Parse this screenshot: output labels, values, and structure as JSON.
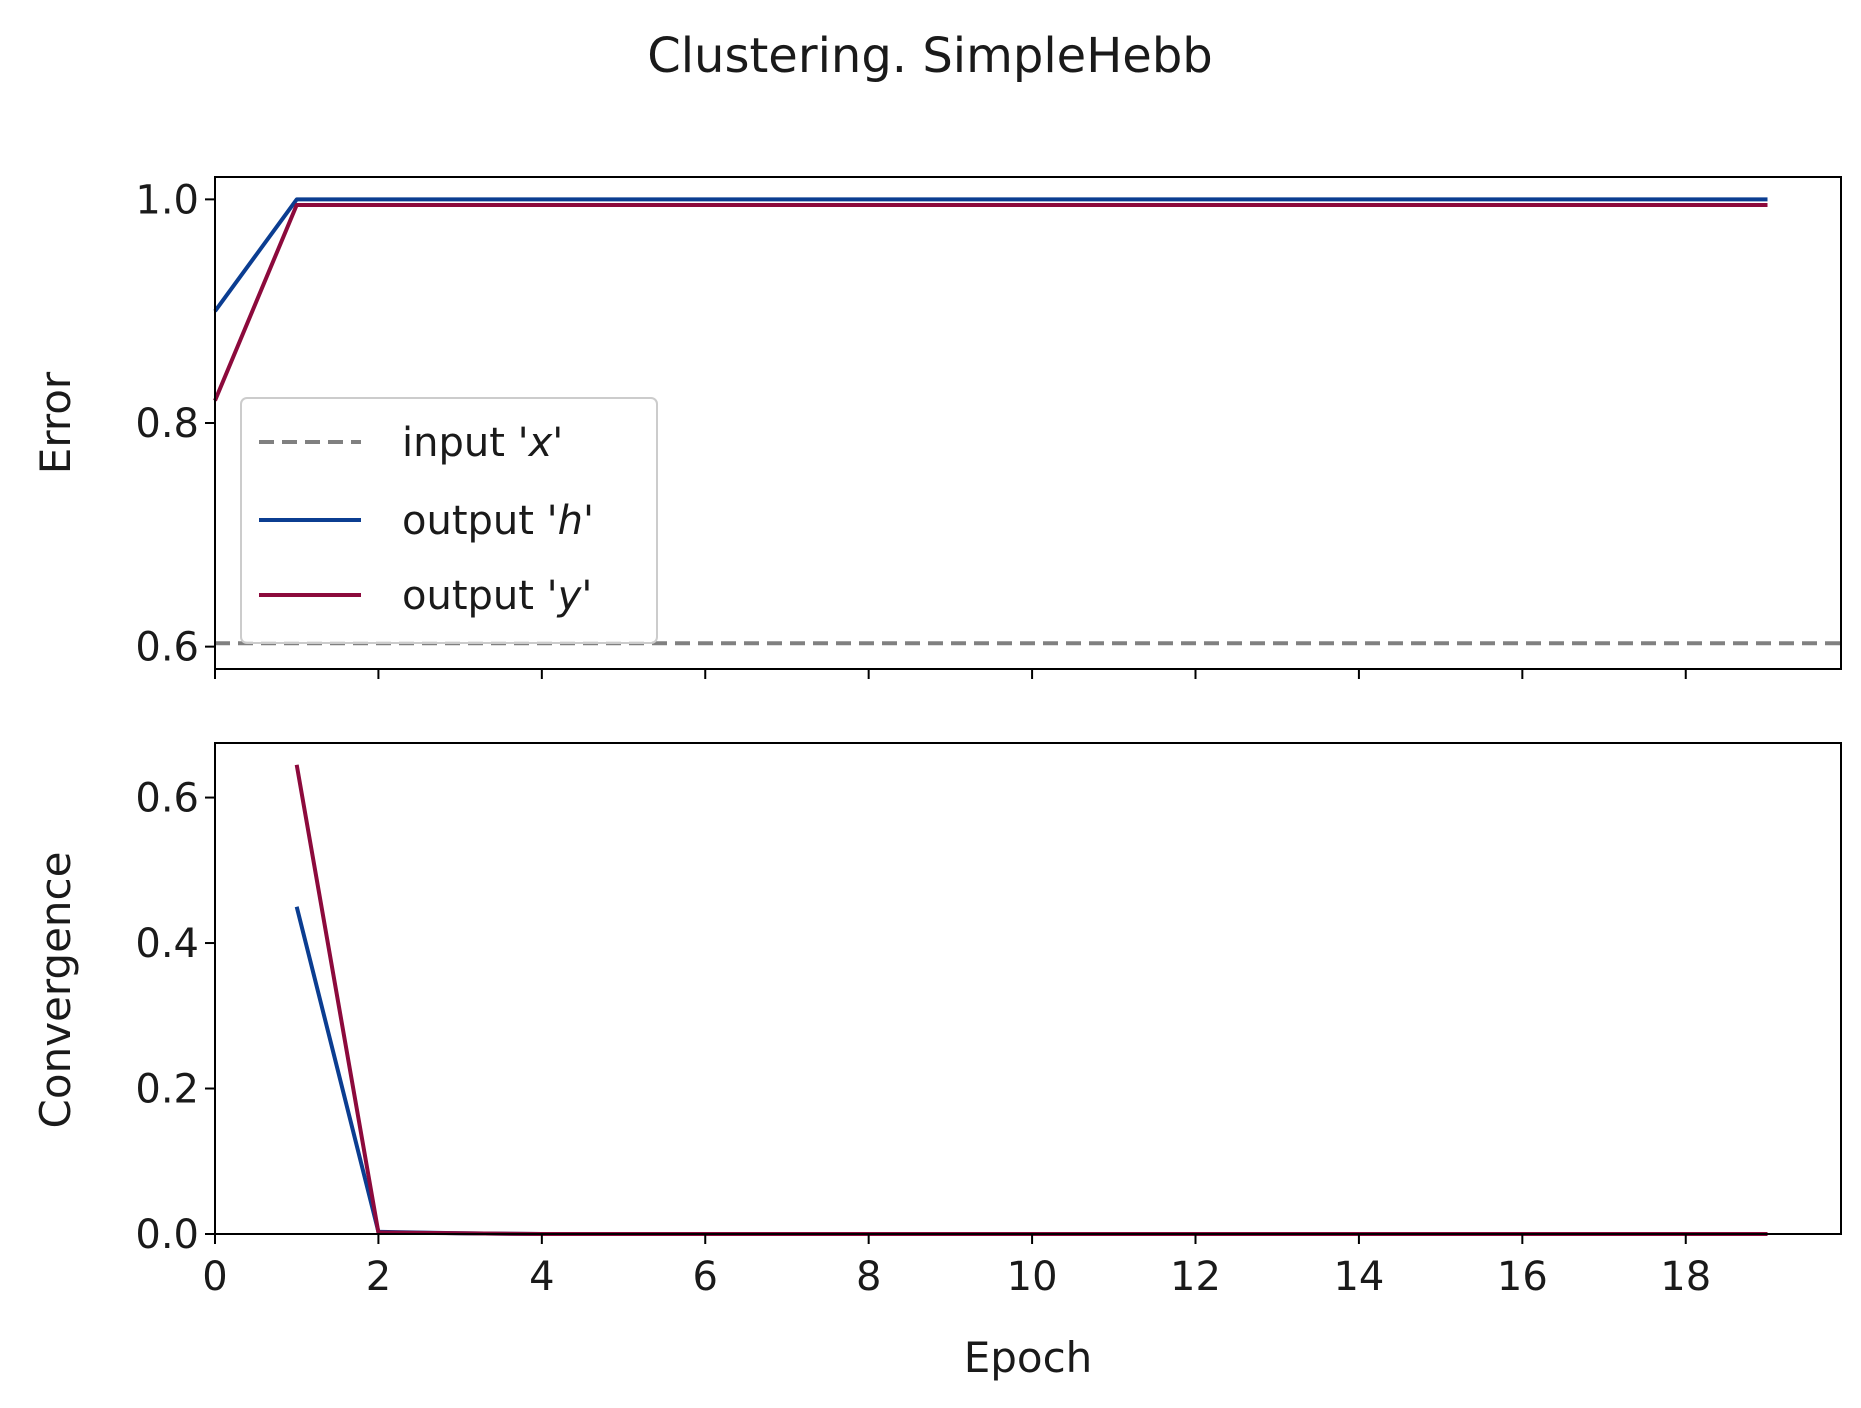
{
  "chart_data": {
    "type": "line",
    "title": "Clustering. SimpleHebb",
    "colors": {
      "input_x": "#808080",
      "output_h": "#0b3d91",
      "output_y": "#8c0a3c"
    },
    "legend": {
      "placement": "lower-left of top panel",
      "entries": [
        {
          "key": "input_x",
          "prefix": "input '",
          "var": "x",
          "suffix": "'",
          "style": "dashed"
        },
        {
          "key": "output_h",
          "prefix": "output '",
          "var": "h",
          "suffix": "'",
          "style": "solid"
        },
        {
          "key": "output_y",
          "prefix": "output '",
          "var": "y",
          "suffix": "'",
          "style": "solid"
        }
      ]
    },
    "xlabel": "Epoch",
    "xlim": [
      0,
      19.9
    ],
    "xticks": [
      0,
      2,
      4,
      6,
      8,
      10,
      12,
      14,
      16,
      18
    ],
    "panels": [
      {
        "ylabel": "Error",
        "ylim": [
          0.58,
          1.02
        ],
        "yticks": [
          "0.6",
          "0.8",
          "1.0"
        ],
        "show_xticklabels": false,
        "hlines": [
          {
            "key": "input_x",
            "y": 0.603
          }
        ],
        "series": [
          {
            "key": "output_h",
            "x": [
              0,
              1,
              2,
              3,
              4,
              5,
              6,
              7,
              8,
              9,
              10,
              11,
              12,
              13,
              14,
              15,
              16,
              17,
              18,
              19
            ],
            "y": [
              0.9,
              1.0,
              1.0,
              1.0,
              1.0,
              1.0,
              1.0,
              1.0,
              1.0,
              1.0,
              1.0,
              1.0,
              1.0,
              1.0,
              1.0,
              1.0,
              1.0,
              1.0,
              1.0,
              1.0
            ]
          },
          {
            "key": "output_y",
            "x": [
              0,
              1,
              2,
              3,
              4,
              5,
              6,
              7,
              8,
              9,
              10,
              11,
              12,
              13,
              14,
              15,
              16,
              17,
              18,
              19
            ],
            "y": [
              0.82,
              0.995,
              0.995,
              0.995,
              0.995,
              0.995,
              0.995,
              0.995,
              0.995,
              0.995,
              0.995,
              0.995,
              0.995,
              0.995,
              0.995,
              0.995,
              0.995,
              0.995,
              0.995,
              0.995
            ]
          }
        ]
      },
      {
        "ylabel": "Convergence",
        "ylim": [
          0,
          0.675
        ],
        "yticks": [
          "0.0",
          "0.2",
          "0.4",
          "0.6"
        ],
        "show_xticklabels": true,
        "hlines": [],
        "series": [
          {
            "key": "output_h",
            "x": [
              1,
              2,
              3,
              4,
              5,
              6,
              7,
              8,
              9,
              10,
              11,
              12,
              13,
              14,
              15,
              16,
              17,
              18,
              19
            ],
            "y": [
              0.45,
              0.003,
              0.001,
              0,
              0,
              0,
              0,
              0,
              0,
              0,
              0,
              0,
              0,
              0,
              0,
              0,
              0,
              0,
              0
            ]
          },
          {
            "key": "output_y",
            "x": [
              1,
              2,
              3,
              4,
              5,
              6,
              7,
              8,
              9,
              10,
              11,
              12,
              13,
              14,
              15,
              16,
              17,
              18,
              19
            ],
            "y": [
              0.645,
              0.002,
              0.001,
              0,
              0,
              0,
              0,
              0,
              0,
              0,
              0,
              0,
              0,
              0,
              0,
              0,
              0,
              0,
              0
            ]
          }
        ]
      }
    ]
  }
}
